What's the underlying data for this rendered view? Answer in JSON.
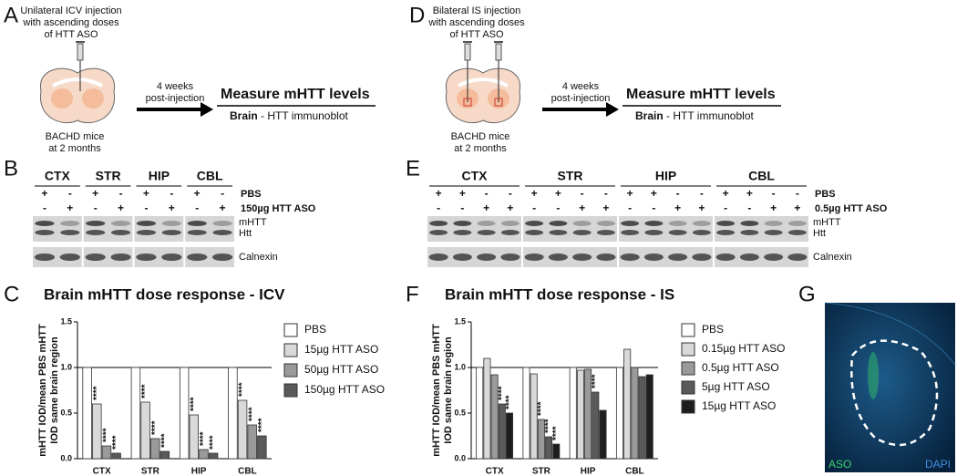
{
  "panel_a": {
    "letter": "A",
    "injection": [
      "Unilateral ICV injection",
      "with ascending doses",
      "of HTT ASO"
    ],
    "mice": [
      "BACHD mice",
      "at 2 months"
    ],
    "arrow": [
      "4 weeks",
      "post-injection"
    ],
    "measure": "Measure mHTT levels",
    "method_bold": "Brain",
    "method": " - HTT immunoblot"
  },
  "panel_b": {
    "letter": "B",
    "regions": [
      "CTX",
      "STR",
      "HIP",
      "CBL"
    ],
    "rows": [
      {
        "label": "PBS",
        "signs": [
          "+",
          "-",
          "+",
          "-",
          "+",
          "-",
          "+",
          "-"
        ]
      },
      {
        "label": "150µg HTT ASO",
        "signs": [
          "-",
          "+",
          "-",
          "+",
          "-",
          "+",
          "-",
          "+"
        ]
      }
    ],
    "bands": [
      "mHTT",
      "Htt",
      "Calnexin"
    ]
  },
  "panel_d": {
    "letter": "D",
    "injection": [
      "Bilateral IS injection",
      "with ascending doses",
      "of HTT ASO"
    ],
    "mice": [
      "BACHD mice",
      "at 2 months"
    ],
    "arrow": [
      "4 weeks",
      "post-injection"
    ],
    "measure": "Measure mHTT levels",
    "method_bold": "Brain",
    "method": " - HTT immunoblot"
  },
  "panel_e": {
    "letter": "E",
    "regions": [
      "CTX",
      "STR",
      "HIP",
      "CBL"
    ],
    "rows": [
      {
        "label": "PBS",
        "signs": [
          "+",
          "+",
          "-",
          "-",
          "+",
          "+",
          "-",
          "-",
          "+",
          "+",
          "-",
          "-",
          "+",
          "+",
          "-",
          "-"
        ]
      },
      {
        "label": "0.5µg HTT ASO",
        "signs": [
          "-",
          "-",
          "+",
          "+",
          "-",
          "-",
          "+",
          "+",
          "-",
          "-",
          "+",
          "+",
          "-",
          "-",
          "+",
          "+"
        ]
      }
    ],
    "bands": [
      "mHTT",
      "Htt",
      "Calnexin"
    ]
  },
  "panel_g": {
    "letter": "G",
    "labels": [
      "ASO",
      "DAPI"
    ]
  },
  "chart_data": [
    {
      "type": "bar",
      "panel": "C",
      "title": "Brain mHTT dose response - ICV",
      "ylabel": [
        "mHTT IOD/mean PBS mHTT",
        "IOD same brain region"
      ],
      "categories": [
        "CTX",
        "STR",
        "HIP",
        "CBL"
      ],
      "ylim": [
        0,
        1.5
      ],
      "yticks": [
        {
          "value": 0,
          "label": "0.0"
        },
        {
          "value": 0.5,
          "label": "0.5"
        },
        {
          "value": 1.0,
          "label": "1.0"
        },
        {
          "value": 1.5,
          "label": "1.5"
        }
      ],
      "reference_line": 1.0,
      "series": [
        {
          "name": "PBS",
          "color": "#ffffff",
          "values": [
            1.0,
            1.0,
            1.0,
            1.0
          ]
        },
        {
          "name": "15µg HTT ASO",
          "color": "#d9d9d9",
          "values": [
            0.6,
            0.62,
            0.48,
            0.64
          ],
          "annotations": [
            "****",
            "****",
            "****",
            "****"
          ]
        },
        {
          "name": "50µg HTT ASO",
          "color": "#9a9a9a",
          "values": [
            0.14,
            0.22,
            0.1,
            0.37
          ],
          "annotations": [
            "****",
            "****",
            "****",
            "****"
          ]
        },
        {
          "name": "150µg HTT ASO",
          "color": "#5a5a5a",
          "values": [
            0.06,
            0.08,
            0.06,
            0.25
          ],
          "annotations": [
            "****",
            "****",
            "****",
            "****"
          ]
        }
      ]
    },
    {
      "type": "bar",
      "panel": "F",
      "title": "Brain mHTT dose response - IS",
      "ylabel": [
        "mHTT IOD/mean PBS mHTT",
        "IOD same brain region"
      ],
      "categories": [
        "CTX",
        "STR",
        "HIP",
        "CBL"
      ],
      "ylim": [
        0,
        1.5
      ],
      "yticks": [
        {
          "value": 0,
          "label": "0.0"
        },
        {
          "value": 0.5,
          "label": "0.5"
        },
        {
          "value": 1.0,
          "label": "1.0"
        },
        {
          "value": 1.5,
          "label": "1.5"
        }
      ],
      "reference_line": 1.0,
      "series": [
        {
          "name": "PBS",
          "color": "#ffffff",
          "values": [
            1.0,
            1.0,
            1.0,
            1.0
          ]
        },
        {
          "name": "0.15µg HTT ASO",
          "color": "#d9d9d9",
          "values": [
            1.1,
            0.93,
            0.97,
            1.2
          ]
        },
        {
          "name": "0.5µg HTT ASO",
          "color": "#9a9a9a",
          "values": [
            0.92,
            0.43,
            0.98,
            1.0
          ],
          "annotations": [
            null,
            "****",
            null,
            null
          ]
        },
        {
          "name": "5µg HTT ASO",
          "color": "#5a5a5a",
          "values": [
            0.6,
            0.24,
            0.73,
            0.9
          ],
          "annotations": [
            "****",
            "****",
            "****",
            null
          ]
        },
        {
          "name": "15µg HTT ASO",
          "color": "#1e1e1e",
          "values": [
            0.5,
            0.16,
            0.53,
            0.92
          ],
          "annotations": [
            "****",
            "****",
            null,
            null
          ]
        }
      ]
    }
  ]
}
